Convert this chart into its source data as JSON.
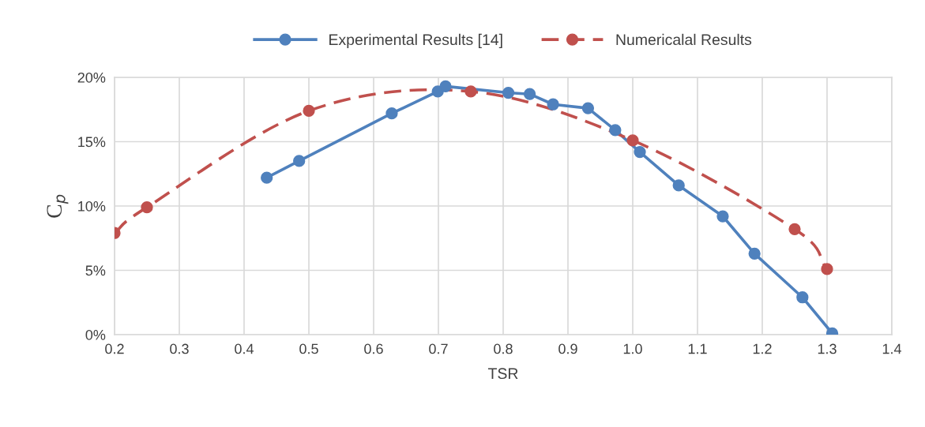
{
  "chart_data": {
    "type": "line",
    "xlabel": "TSR",
    "ylabel": "C$_{p}$",
    "xlim": [
      0.2,
      1.4
    ],
    "xticks": [
      {
        "value": 0.2,
        "label": "0.2"
      },
      {
        "value": 0.3,
        "label": "0.3"
      },
      {
        "value": 0.4,
        "label": "0.4"
      },
      {
        "value": 0.5,
        "label": "0.5"
      },
      {
        "value": 0.6,
        "label": "0.6"
      },
      {
        "value": 0.7,
        "label": "0.7"
      },
      {
        "value": 0.8,
        "label": "0.8"
      },
      {
        "value": 0.9,
        "label": "0.9"
      },
      {
        "value": 1.0,
        "label": "1.0"
      },
      {
        "value": 1.1,
        "label": "1.1"
      },
      {
        "value": 1.2,
        "label": "1.2"
      },
      {
        "value": 1.3,
        "label": "1.3"
      },
      {
        "value": 1.4,
        "label": "1.4"
      }
    ],
    "ylim": [
      0,
      20
    ],
    "yticks": [
      {
        "value": 0,
        "label": "0%"
      },
      {
        "value": 5,
        "label": "5%"
      },
      {
        "value": 10,
        "label": "10%"
      },
      {
        "value": 15,
        "label": "15%"
      },
      {
        "value": 20,
        "label": "20%"
      }
    ],
    "grid": true,
    "legend": "top",
    "marker": "circle",
    "series": [
      {
        "name": "Experimental Results [14]",
        "color": "#4f81bd",
        "line_style": "solid",
        "x": [
          0.435,
          0.485,
          0.628,
          0.699,
          0.711,
          0.808,
          0.841,
          0.877,
          0.931,
          0.973,
          1.011,
          1.071,
          1.139,
          1.188,
          1.262,
          1.308
        ],
        "values": [
          12.2,
          13.5,
          17.2,
          18.9,
          19.3,
          18.8,
          18.7,
          17.9,
          17.6,
          15.9,
          14.2,
          11.6,
          9.2,
          6.3,
          2.9,
          0.1
        ]
      },
      {
        "name": "Numericalal Results",
        "color": "#c0504d",
        "line_style": "dashed",
        "x": [
          0.2,
          0.25,
          0.5,
          0.75,
          1.0,
          1.25,
          1.3
        ],
        "values": [
          7.9,
          9.9,
          17.4,
          18.9,
          15.1,
          8.2,
          5.1
        ]
      }
    ]
  }
}
